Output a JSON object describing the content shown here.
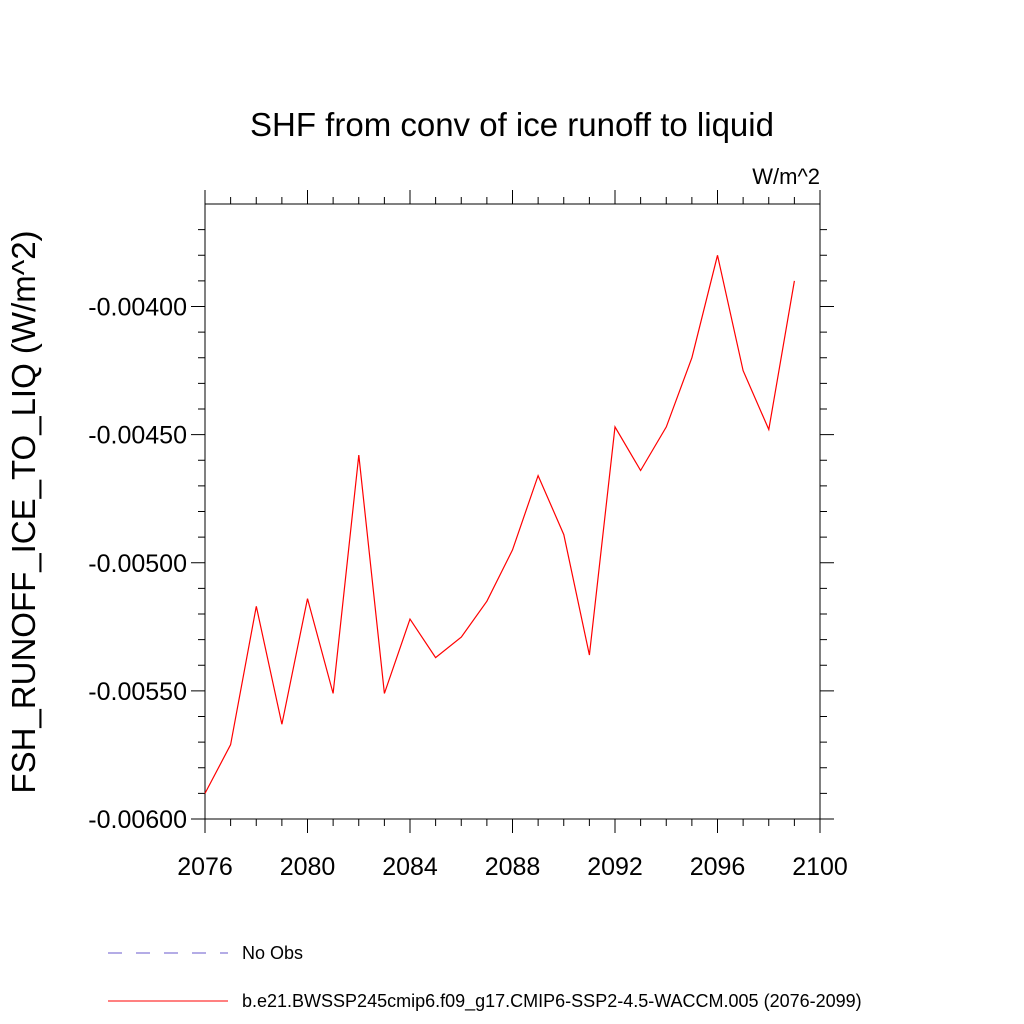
{
  "chart_data": {
    "type": "line",
    "title": "SHF from conv of ice runoff to liquid",
    "units": "W/m^2",
    "ylabel": "FSH_RUNOFF_ICE_TO_LIQ  (W/m^2)",
    "xlabel": "",
    "xlim": [
      2076,
      2100
    ],
    "ylim": [
      -0.006,
      -0.0036
    ],
    "x_ticks": [
      2076,
      2080,
      2084,
      2088,
      2092,
      2096,
      2100
    ],
    "x_tick_labels": [
      "2076",
      "2080",
      "2084",
      "2088",
      "2092",
      "2096",
      "2100"
    ],
    "y_ticks": [
      -0.006,
      -0.0055,
      -0.005,
      -0.0045,
      -0.004
    ],
    "y_tick_labels": [
      "-0.00600",
      "-0.00550",
      "-0.00500",
      "-0.00450",
      "-0.00400"
    ],
    "series": [
      {
        "name": "b.e21.BWSSP245cmip6.f09_g17.CMIP6-SSP2-4.5-WACCM.005 (2076-2099)",
        "color": "#ff0000",
        "style": "solid",
        "x": [
          2076,
          2077,
          2078,
          2079,
          2080,
          2081,
          2082,
          2083,
          2084,
          2085,
          2086,
          2087,
          2088,
          2089,
          2090,
          2091,
          2092,
          2093,
          2094,
          2095,
          2096,
          2097,
          2098,
          2099
        ],
        "values": [
          -0.0059,
          -0.00571,
          -0.00517,
          -0.00563,
          -0.00514,
          -0.00551,
          -0.00458,
          -0.00551,
          -0.00522,
          -0.00537,
          -0.00529,
          -0.00515,
          -0.00495,
          -0.00466,
          -0.00489,
          -0.00536,
          -0.00447,
          -0.00464,
          -0.00447,
          -0.0042,
          -0.0038,
          -0.00425,
          -0.00448,
          -0.0039
        ]
      }
    ],
    "legend": [
      {
        "label": "No Obs",
        "color": "#6a5acd",
        "style": "dashed"
      },
      {
        "label": "b.e21.BWSSP245cmip6.f09_g17.CMIP6-SSP2-4.5-WACCM.005 (2076-2099)",
        "color": "#ff0000",
        "style": "solid"
      }
    ],
    "legend_position": "bottom-left"
  }
}
